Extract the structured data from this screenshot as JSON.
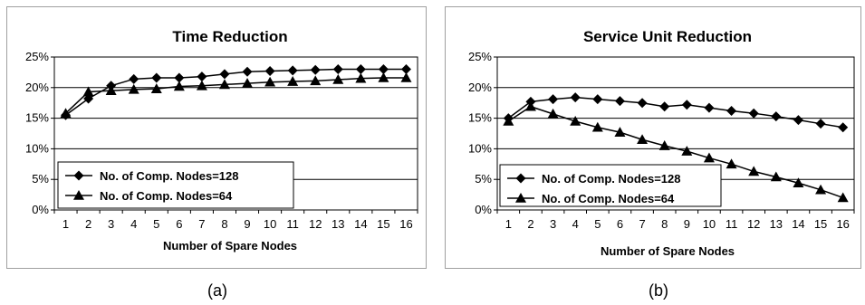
{
  "captions": [
    "(a)",
    "(b)"
  ],
  "chart_data": [
    {
      "type": "line",
      "title": "Time Reduction",
      "xlabel": "Number of Spare Nodes",
      "ylabel": "",
      "x": [
        1,
        2,
        3,
        4,
        5,
        6,
        7,
        8,
        9,
        10,
        11,
        12,
        13,
        14,
        15,
        16
      ],
      "ylim": [
        0,
        25
      ],
      "yticks": [
        "0%",
        "5%",
        "10%",
        "15%",
        "20%",
        "25%"
      ],
      "grid": "horizontal",
      "legend_position": "bottom-left",
      "series": [
        {
          "name": "No. of Comp. Nodes=128",
          "marker": "diamond",
          "values": [
            15.5,
            18.2,
            20.3,
            21.4,
            21.6,
            21.6,
            21.8,
            22.2,
            22.6,
            22.7,
            22.8,
            22.9,
            23.0,
            23.0,
            23.0,
            23.0
          ]
        },
        {
          "name": "No. of Comp. Nodes=64",
          "marker": "triangle",
          "values": [
            15.8,
            19.3,
            19.5,
            19.7,
            19.8,
            20.2,
            20.3,
            20.5,
            20.7,
            20.9,
            21.0,
            21.1,
            21.3,
            21.5,
            21.6,
            21.6
          ]
        }
      ]
    },
    {
      "type": "line",
      "title": "Service Unit Reduction",
      "xlabel": "Number of Spare Nodes",
      "ylabel": "",
      "x": [
        1,
        2,
        3,
        4,
        5,
        6,
        7,
        8,
        9,
        10,
        11,
        12,
        13,
        14,
        15,
        16
      ],
      "ylim": [
        0,
        25
      ],
      "yticks": [
        "0%",
        "5%",
        "10%",
        "15%",
        "20%",
        "25%"
      ],
      "grid": "horizontal",
      "legend_position": "bottom-left",
      "series": [
        {
          "name": "No. of Comp. Nodes=128",
          "marker": "diamond",
          "values": [
            15.0,
            17.7,
            18.1,
            18.4,
            18.1,
            17.8,
            17.5,
            16.9,
            17.2,
            16.7,
            16.2,
            15.8,
            15.3,
            14.7,
            14.1,
            13.5
          ]
        },
        {
          "name": "No. of Comp. Nodes=64",
          "marker": "triangle",
          "values": [
            14.5,
            16.9,
            15.7,
            14.5,
            13.5,
            12.7,
            11.5,
            10.5,
            9.6,
            8.5,
            7.5,
            6.3,
            5.4,
            4.4,
            3.3,
            2.0
          ]
        }
      ]
    }
  ]
}
